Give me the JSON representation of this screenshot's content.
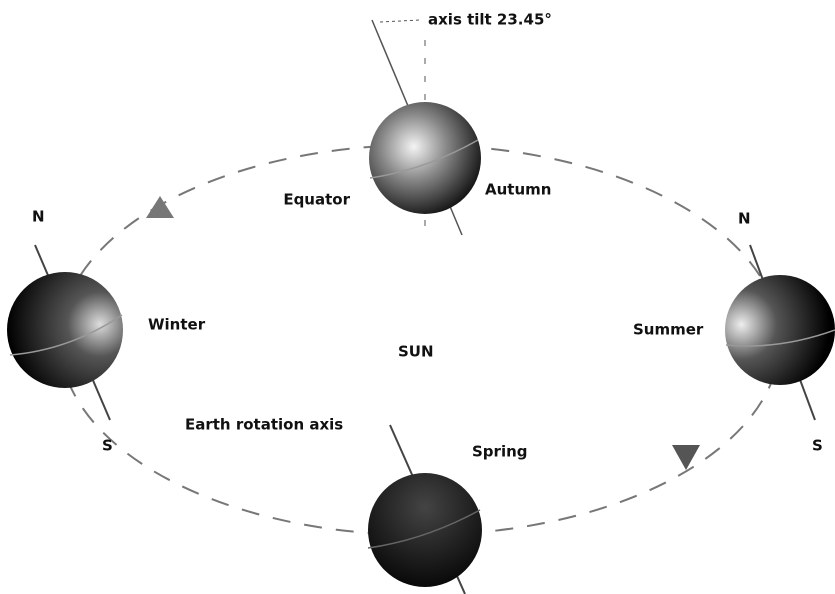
{
  "labels": {
    "tilt": "axis tilt 23.45°",
    "equator": "Equator",
    "autumn": "Autumn",
    "north_left": "N",
    "north_right": "N",
    "winter": "Winter",
    "sun": "SUN",
    "summer": "Summer",
    "rotation_axis": "Earth rotation axis",
    "spring": "Spring",
    "south_left": "S",
    "south_right": "S"
  }
}
